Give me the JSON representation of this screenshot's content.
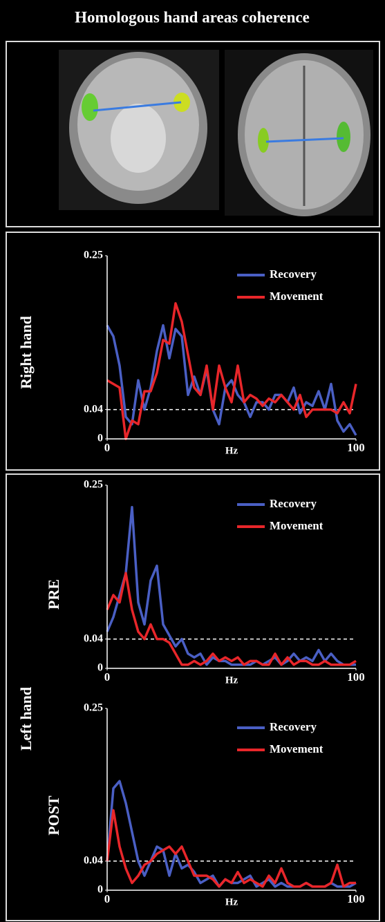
{
  "title": "Homologous hand areas coherence",
  "group_label": "Left hand",
  "chart_data": [
    {
      "type": "line",
      "ylabel": "Right hand",
      "xlabel": "Hz",
      "xlim": [
        0,
        100
      ],
      "xticks": [
        0,
        100
      ],
      "ylim": [
        0,
        0.25
      ],
      "yticks": [
        0,
        0.04,
        0.25
      ],
      "reference_line": 0.04,
      "legend": "top-right",
      "x": [
        0,
        2.5,
        5,
        7.5,
        10,
        12.5,
        15,
        17.5,
        20,
        22.5,
        25,
        27.5,
        30,
        32.5,
        35,
        37.5,
        40,
        42.5,
        45,
        47.5,
        50,
        52.5,
        55,
        57.5,
        60,
        62.5,
        65,
        67.5,
        70,
        72.5,
        75,
        77.5,
        80,
        82.5,
        85,
        87.5,
        90,
        92.5,
        95,
        97.5,
        100
      ],
      "series": [
        {
          "name": "Recovery",
          "color": "#4a5fc4",
          "values": [
            0.155,
            0.14,
            0.1,
            0.03,
            0.02,
            0.08,
            0.04,
            0.07,
            0.12,
            0.155,
            0.11,
            0.15,
            0.14,
            0.06,
            0.085,
            0.06,
            0.095,
            0.04,
            0.02,
            0.07,
            0.08,
            0.06,
            0.05,
            0.03,
            0.05,
            0.05,
            0.04,
            0.06,
            0.06,
            0.05,
            0.07,
            0.035,
            0.05,
            0.045,
            0.065,
            0.04,
            0.075,
            0.025,
            0.01,
            0.02,
            0.005
          ]
        },
        {
          "name": "Movement",
          "color": "#e8262a",
          "values": [
            0.08,
            0.075,
            0.07,
            0.0,
            0.025,
            0.02,
            0.065,
            0.065,
            0.09,
            0.135,
            0.13,
            0.185,
            0.16,
            0.115,
            0.07,
            0.06,
            0.1,
            0.04,
            0.1,
            0.07,
            0.05,
            0.1,
            0.05,
            0.06,
            0.055,
            0.045,
            0.055,
            0.05,
            0.06,
            0.05,
            0.04,
            0.06,
            0.03,
            0.04,
            0.04,
            0.04,
            0.04,
            0.035,
            0.05,
            0.035,
            0.075
          ]
        }
      ]
    },
    {
      "type": "line",
      "ylabel": "PRE",
      "xlabel": "Hz",
      "xlim": [
        0,
        100
      ],
      "xticks": [
        0,
        100
      ],
      "ylim": [
        0,
        0.25
      ],
      "yticks": [
        0,
        0.04,
        0.25
      ],
      "reference_line": 0.04,
      "legend": "top-right",
      "x": [
        0,
        2.5,
        5,
        7.5,
        10,
        12.5,
        15,
        17.5,
        20,
        22.5,
        25,
        27.5,
        30,
        32.5,
        35,
        37.5,
        40,
        42.5,
        45,
        47.5,
        50,
        52.5,
        55,
        57.5,
        60,
        62.5,
        65,
        67.5,
        70,
        72.5,
        75,
        77.5,
        80,
        82.5,
        85,
        87.5,
        90,
        92.5,
        95,
        97.5,
        100
      ],
      "series": [
        {
          "name": "Recovery",
          "color": "#4a5fc4",
          "values": [
            0.05,
            0.07,
            0.1,
            0.13,
            0.22,
            0.09,
            0.06,
            0.12,
            0.14,
            0.06,
            0.045,
            0.03,
            0.04,
            0.02,
            0.015,
            0.02,
            0.005,
            0.015,
            0.01,
            0.01,
            0.005,
            0.005,
            0.005,
            0.005,
            0.01,
            0.005,
            0.01,
            0.015,
            0.005,
            0.01,
            0.02,
            0.01,
            0.015,
            0.01,
            0.025,
            0.01,
            0.02,
            0.01,
            0.005,
            0.005,
            0.005
          ]
        },
        {
          "name": "Movement",
          "color": "#e8262a",
          "values": [
            0.08,
            0.1,
            0.09,
            0.13,
            0.08,
            0.05,
            0.04,
            0.06,
            0.04,
            0.04,
            0.035,
            0.02,
            0.005,
            0.005,
            0.01,
            0.005,
            0.01,
            0.02,
            0.01,
            0.015,
            0.01,
            0.015,
            0.005,
            0.01,
            0.01,
            0.005,
            0.005,
            0.02,
            0.005,
            0.015,
            0.005,
            0.01,
            0.01,
            0.005,
            0.005,
            0.01,
            0.005,
            0.005,
            0.005,
            0.005,
            0.01
          ]
        }
      ]
    },
    {
      "type": "line",
      "ylabel": "POST",
      "xlabel": "Hz",
      "xlim": [
        0,
        100
      ],
      "xticks": [
        0,
        100
      ],
      "ylim": [
        0,
        0.25
      ],
      "yticks": [
        0,
        0.04,
        0.25
      ],
      "reference_line": 0.04,
      "legend": "top-right",
      "x": [
        0,
        2.5,
        5,
        7.5,
        10,
        12.5,
        15,
        17.5,
        20,
        22.5,
        25,
        27.5,
        30,
        32.5,
        35,
        37.5,
        40,
        42.5,
        45,
        47.5,
        50,
        52.5,
        55,
        57.5,
        60,
        62.5,
        65,
        67.5,
        70,
        72.5,
        75,
        77.5,
        80,
        82.5,
        85,
        87.5,
        90,
        92.5,
        95,
        97.5,
        100
      ],
      "series": [
        {
          "name": "Recovery",
          "color": "#4a5fc4",
          "values": [
            0.04,
            0.14,
            0.15,
            0.12,
            0.08,
            0.04,
            0.02,
            0.04,
            0.06,
            0.055,
            0.02,
            0.05,
            0.03,
            0.035,
            0.025,
            0.01,
            0.015,
            0.02,
            0.005,
            0.015,
            0.01,
            0.01,
            0.015,
            0.02,
            0.005,
            0.01,
            0.015,
            0.005,
            0.01,
            0.005,
            0.005,
            0.005,
            0.01,
            0.005,
            0.005,
            0.005,
            0.01,
            0.005,
            0.005,
            0.005,
            0.01
          ]
        },
        {
          "name": "Movement",
          "color": "#e8262a",
          "values": [
            0.04,
            0.11,
            0.06,
            0.03,
            0.01,
            0.02,
            0.035,
            0.04,
            0.05,
            0.055,
            0.06,
            0.05,
            0.06,
            0.04,
            0.02,
            0.02,
            0.02,
            0.015,
            0.005,
            0.015,
            0.01,
            0.025,
            0.01,
            0.015,
            0.01,
            0.005,
            0.02,
            0.01,
            0.03,
            0.01,
            0.005,
            0.005,
            0.01,
            0.005,
            0.005,
            0.005,
            0.01,
            0.035,
            0.005,
            0.01,
            0.01
          ]
        }
      ]
    }
  ]
}
